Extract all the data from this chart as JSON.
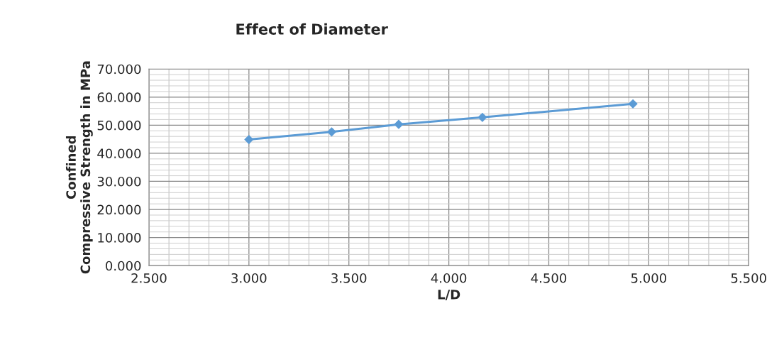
{
  "chart_data": {
    "type": "line",
    "title": "Effect of Diameter",
    "xlabel": "L/D",
    "ylabel": "Confined\nCompressive Strength in MPa",
    "x": [
      3.0,
      3.414,
      3.749,
      4.168,
      4.921
    ],
    "series": [
      {
        "color": "#5b9bd5",
        "values": [
          44.9,
          47.6,
          50.3,
          52.8,
          57.6
        ]
      }
    ],
    "xlim": [
      2.5,
      5.5
    ],
    "xticks": [
      {
        "value": 2.5,
        "label": "2.500"
      },
      {
        "value": 3.0,
        "label": "3.000"
      },
      {
        "value": 3.5,
        "label": "3.500"
      },
      {
        "value": 4.0,
        "label": "4.000"
      },
      {
        "value": 4.5,
        "label": "4.500"
      },
      {
        "value": 5.0,
        "label": "5.000"
      },
      {
        "value": 5.5,
        "label": "5.500"
      }
    ],
    "ylim": [
      0,
      70
    ],
    "yticks": [
      {
        "value": 0,
        "label": "0.000"
      },
      {
        "value": 10,
        "label": "10.000"
      },
      {
        "value": 20,
        "label": "20.000"
      },
      {
        "value": 30,
        "label": "30.000"
      },
      {
        "value": 40,
        "label": "40.000"
      },
      {
        "value": 50,
        "label": "50.000"
      },
      {
        "value": 60,
        "label": "60.000"
      },
      {
        "value": 70,
        "label": "70.000"
      }
    ],
    "grid": true,
    "marker": "diamond",
    "line_style": "solid"
  }
}
